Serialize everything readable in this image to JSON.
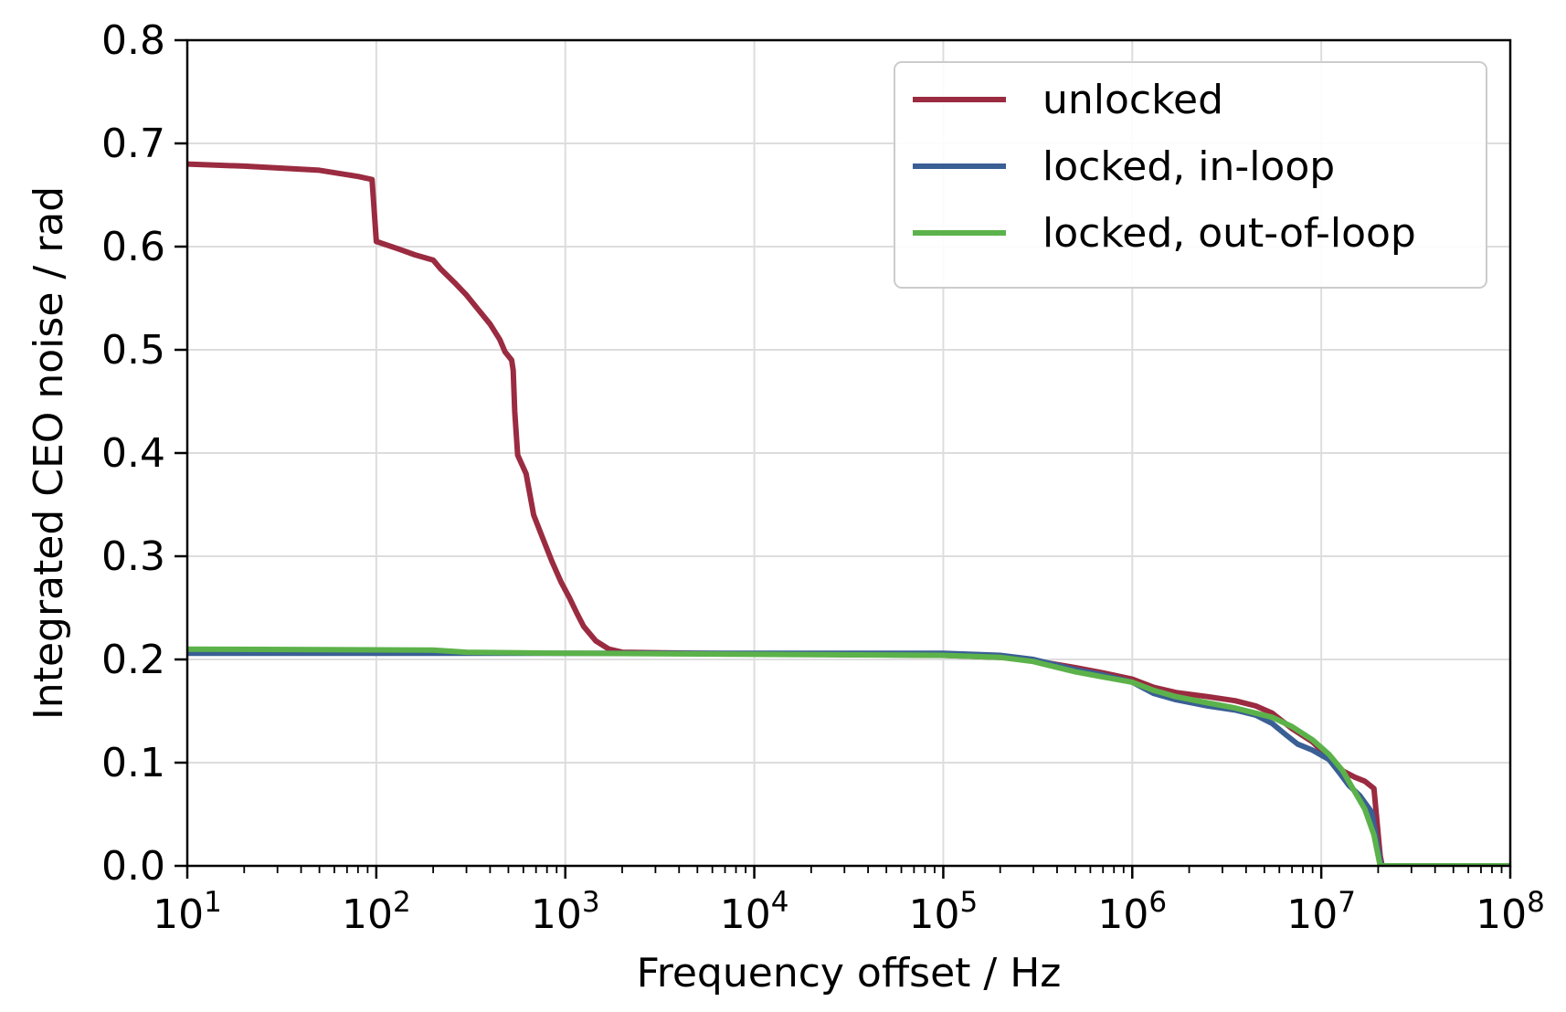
{
  "chart_data": {
    "type": "line",
    "title": "",
    "xlabel": "Frequency offset / Hz",
    "ylabel": "Integrated CEO noise / rad",
    "xscale": "log",
    "xlim": [
      10,
      100000000
    ],
    "ylim": [
      0.0,
      0.8
    ],
    "grid": true,
    "legend_position": "top-right",
    "x_ticks": [
      {
        "value": 10,
        "base": "10",
        "exp": "1"
      },
      {
        "value": 100,
        "base": "10",
        "exp": "2"
      },
      {
        "value": 1000,
        "base": "10",
        "exp": "3"
      },
      {
        "value": 10000,
        "base": "10",
        "exp": "4"
      },
      {
        "value": 100000,
        "base": "10",
        "exp": "5"
      },
      {
        "value": 1000000,
        "base": "10",
        "exp": "6"
      },
      {
        "value": 10000000,
        "base": "10",
        "exp": "7"
      },
      {
        "value": 100000000,
        "base": "10",
        "exp": "8"
      }
    ],
    "y_ticks": [
      {
        "value": 0.0,
        "label": "0.0"
      },
      {
        "value": 0.1,
        "label": "0.1"
      },
      {
        "value": 0.2,
        "label": "0.2"
      },
      {
        "value": 0.3,
        "label": "0.3"
      },
      {
        "value": 0.4,
        "label": "0.4"
      },
      {
        "value": 0.5,
        "label": "0.5"
      },
      {
        "value": 0.6,
        "label": "0.6"
      },
      {
        "value": 0.7,
        "label": "0.7"
      },
      {
        "value": 0.8,
        "label": "0.8"
      }
    ],
    "series": [
      {
        "name": "unlocked",
        "color": "#9a2b40",
        "points": [
          [
            10,
            0.68
          ],
          [
            20,
            0.678
          ],
          [
            50,
            0.674
          ],
          [
            80,
            0.668
          ],
          [
            95,
            0.665
          ],
          [
            100,
            0.605
          ],
          [
            130,
            0.598
          ],
          [
            160,
            0.592
          ],
          [
            200,
            0.587
          ],
          [
            220,
            0.578
          ],
          [
            260,
            0.565
          ],
          [
            300,
            0.553
          ],
          [
            350,
            0.538
          ],
          [
            400,
            0.525
          ],
          [
            450,
            0.51
          ],
          [
            480,
            0.498
          ],
          [
            520,
            0.49
          ],
          [
            530,
            0.48
          ],
          [
            540,
            0.44
          ],
          [
            560,
            0.398
          ],
          [
            620,
            0.38
          ],
          [
            680,
            0.34
          ],
          [
            750,
            0.32
          ],
          [
            850,
            0.295
          ],
          [
            950,
            0.275
          ],
          [
            1050,
            0.26
          ],
          [
            1150,
            0.245
          ],
          [
            1250,
            0.232
          ],
          [
            1450,
            0.218
          ],
          [
            1700,
            0.21
          ],
          [
            2000,
            0.207
          ],
          [
            5000,
            0.206
          ],
          [
            20000,
            0.205
          ],
          [
            100000,
            0.204
          ],
          [
            200000,
            0.202
          ],
          [
            300000,
            0.199
          ],
          [
            500000,
            0.192
          ],
          [
            700000,
            0.187
          ],
          [
            1000000,
            0.181
          ],
          [
            1300000,
            0.173
          ],
          [
            1700000,
            0.168
          ],
          [
            2500000,
            0.164
          ],
          [
            3500000,
            0.16
          ],
          [
            4500000,
            0.155
          ],
          [
            5500000,
            0.148
          ],
          [
            7000000,
            0.133
          ],
          [
            9000000,
            0.12
          ],
          [
            11000000,
            0.105
          ],
          [
            13000000,
            0.092
          ],
          [
            15000000,
            0.086
          ],
          [
            17000000,
            0.082
          ],
          [
            19000000,
            0.075
          ],
          [
            20500000,
            0.01
          ],
          [
            21000000,
            0.0
          ],
          [
            100000000,
            0.0
          ]
        ]
      },
      {
        "name": "locked, in-loop",
        "color": "#3a5f95",
        "points": [
          [
            10,
            0.206
          ],
          [
            1000,
            0.206
          ],
          [
            10000,
            0.206
          ],
          [
            100000,
            0.206
          ],
          [
            200000,
            0.204
          ],
          [
            300000,
            0.2
          ],
          [
            500000,
            0.19
          ],
          [
            700000,
            0.185
          ],
          [
            1000000,
            0.178
          ],
          [
            1300000,
            0.167
          ],
          [
            1700000,
            0.161
          ],
          [
            2500000,
            0.155
          ],
          [
            3500000,
            0.151
          ],
          [
            4500000,
            0.146
          ],
          [
            5500000,
            0.138
          ],
          [
            6500000,
            0.127
          ],
          [
            7500000,
            0.118
          ],
          [
            9000000,
            0.112
          ],
          [
            11000000,
            0.103
          ],
          [
            12500000,
            0.09
          ],
          [
            14000000,
            0.078
          ],
          [
            16000000,
            0.068
          ],
          [
            18500000,
            0.052
          ],
          [
            20500000,
            0.005
          ],
          [
            21000000,
            0.0
          ],
          [
            100000000,
            0.0
          ]
        ]
      },
      {
        "name": "locked, out-of-loop",
        "color": "#5cb24a",
        "points": [
          [
            10,
            0.21
          ],
          [
            200,
            0.209
          ],
          [
            300,
            0.207
          ],
          [
            1000,
            0.206
          ],
          [
            10000,
            0.205
          ],
          [
            100000,
            0.204
          ],
          [
            200000,
            0.202
          ],
          [
            300000,
            0.198
          ],
          [
            500000,
            0.188
          ],
          [
            700000,
            0.183
          ],
          [
            1000000,
            0.178
          ],
          [
            1300000,
            0.17
          ],
          [
            1700000,
            0.164
          ],
          [
            2500000,
            0.158
          ],
          [
            3500000,
            0.153
          ],
          [
            4500000,
            0.148
          ],
          [
            5500000,
            0.144
          ],
          [
            7000000,
            0.135
          ],
          [
            9000000,
            0.122
          ],
          [
            11000000,
            0.108
          ],
          [
            13000000,
            0.092
          ],
          [
            15000000,
            0.072
          ],
          [
            17000000,
            0.055
          ],
          [
            19000000,
            0.03
          ],
          [
            20500000,
            0.0
          ],
          [
            100000000,
            0.0
          ]
        ]
      }
    ]
  }
}
